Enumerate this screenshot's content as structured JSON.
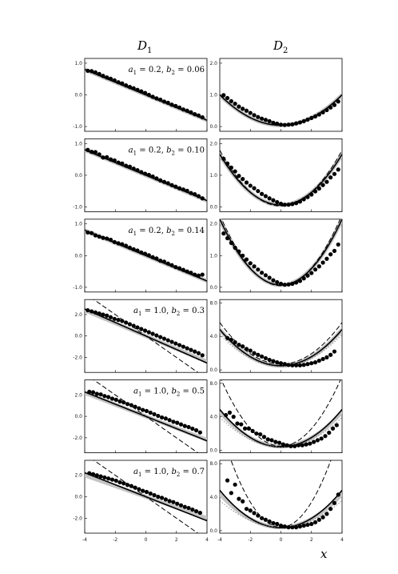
{
  "figure": {
    "column_titles": [
      "D",
      "D"
    ],
    "column_subscripts": [
      "1",
      "2"
    ],
    "x_axis_label": "x",
    "x_ticks": [
      "-4",
      "-2",
      "0",
      "2",
      "4"
    ]
  },
  "chart_data": [
    {
      "type": "line",
      "column": "D1",
      "annotation": {
        "a": "a",
        "a_sub": "1",
        "a_val": "= 0.2,",
        "b": "b",
        "b_sub": "2",
        "b_val": "= 0.06"
      },
      "xlim": [
        -4,
        4
      ],
      "ylim": [
        -1.15,
        1.15
      ],
      "yticks": [
        1.0,
        0.0,
        -1.0
      ],
      "ytick_labels": [
        "1.0",
        "0.0",
        "-1.0"
      ],
      "series": [
        {
          "style": "band-grey",
          "values": {
            "kind": "linear",
            "slope": -0.2,
            "intercept": 0
          }
        },
        {
          "style": "solid",
          "values": {
            "kind": "linear",
            "slope": -0.2,
            "intercept": 0
          }
        },
        {
          "style": "dashed",
          "values": {
            "kind": "linear",
            "slope": -0.2,
            "intercept": 0
          }
        }
      ],
      "points": {
        "x_start": -3.8,
        "x_step": 0.25,
        "y": [
          0.76,
          0.75,
          0.71,
          0.66,
          0.6,
          0.55,
          0.51,
          0.46,
          0.4,
          0.36,
          0.3,
          0.25,
          0.21,
          0.16,
          0.11,
          0.06,
          0.0,
          -0.06,
          -0.11,
          -0.15,
          -0.21,
          -0.25,
          -0.31,
          -0.35,
          -0.4,
          -0.46,
          -0.5,
          -0.55,
          -0.61,
          -0.65,
          -0.71
        ]
      }
    },
    {
      "type": "line",
      "column": "D2",
      "xlim": [
        -4,
        4
      ],
      "ylim": [
        -0.15,
        2.15
      ],
      "yticks": [
        2.0,
        1.0,
        0.0
      ],
      "ytick_labels": [
        "2.0",
        "1.0",
        "0.0"
      ],
      "series": [
        {
          "style": "band-grey",
          "values": {
            "kind": "quadratic",
            "a": 0.06,
            "c": 0.04
          }
        },
        {
          "style": "solid",
          "values": {
            "kind": "quadratic",
            "a": 0.06,
            "c": 0.04
          }
        },
        {
          "style": "dashed",
          "values": {
            "kind": "quadratic",
            "a": 0.06,
            "c": 0.04
          }
        }
      ],
      "points": {
        "x_start": -3.75,
        "x_step": 0.25,
        "y": [
          0.99,
          0.9,
          0.8,
          0.72,
          0.63,
          0.56,
          0.5,
          0.43,
          0.36,
          0.3,
          0.25,
          0.21,
          0.17,
          0.12,
          0.09,
          0.06,
          0.05,
          0.06,
          0.07,
          0.1,
          0.13,
          0.17,
          0.22,
          0.27,
          0.32,
          0.38,
          0.45,
          0.52,
          0.6,
          0.68,
          0.79
        ]
      }
    },
    {
      "type": "line",
      "column": "D1",
      "annotation": {
        "a": "a",
        "a_sub": "1",
        "a_val": "= 0.2,",
        "b": "b",
        "b_sub": "2",
        "b_val": "= 0.10"
      },
      "xlim": [
        -4,
        4
      ],
      "ylim": [
        -1.15,
        1.15
      ],
      "yticks": [
        1.0,
        0.0,
        -1.0
      ],
      "ytick_labels": [
        "1.0",
        "0.0",
        "-1.0"
      ],
      "series": [
        {
          "style": "band-grey",
          "values": {
            "kind": "linear",
            "slope": -0.2,
            "intercept": 0
          }
        },
        {
          "style": "solid",
          "values": {
            "kind": "linear",
            "slope": -0.2,
            "intercept": 0
          }
        },
        {
          "style": "dashed",
          "values": {
            "kind": "linear",
            "slope": -0.2,
            "intercept": 0
          }
        }
      ],
      "points": {
        "x_start": -3.8,
        "x_step": 0.25,
        "y": [
          0.8,
          0.74,
          0.73,
          0.66,
          0.56,
          0.57,
          0.5,
          0.47,
          0.4,
          0.37,
          0.3,
          0.27,
          0.21,
          0.16,
          0.1,
          0.05,
          0.01,
          -0.04,
          -0.1,
          -0.16,
          -0.21,
          -0.25,
          -0.31,
          -0.36,
          -0.41,
          -0.45,
          -0.49,
          -0.56,
          -0.6,
          -0.66,
          -0.73
        ]
      }
    },
    {
      "type": "line",
      "column": "D2",
      "xlim": [
        -4,
        4
      ],
      "ylim": [
        -0.15,
        2.15
      ],
      "yticks": [
        2.0,
        1.0,
        0.0
      ],
      "ytick_labels": [
        "2.0",
        "1.0",
        "0.0"
      ],
      "series": [
        {
          "style": "band-grey",
          "values": {
            "kind": "quadratic",
            "a": 0.1,
            "c": 0.06
          }
        },
        {
          "style": "solid",
          "values": {
            "kind": "quadratic",
            "a": 0.1,
            "c": 0.06
          }
        },
        {
          "style": "dashed",
          "values": {
            "kind": "quadratic",
            "a": 0.11,
            "c": 0.03
          }
        }
      ],
      "points": {
        "x_start": -3.75,
        "x_step": 0.25,
        "y": [
          1.52,
          1.37,
          1.24,
          1.12,
          0.98,
          0.88,
          0.77,
          0.67,
          0.59,
          0.5,
          0.41,
          0.34,
          0.27,
          0.21,
          0.15,
          0.1,
          0.07,
          0.07,
          0.09,
          0.12,
          0.17,
          0.24,
          0.31,
          0.39,
          0.49,
          0.58,
          0.69,
          0.79,
          0.93,
          1.04,
          1.18
        ]
      }
    },
    {
      "type": "line",
      "column": "D1",
      "annotation": {
        "a": "a",
        "a_sub": "1",
        "a_val": "= 0.2,",
        "b": "b",
        "b_sub": "2",
        "b_val": "= 0.14"
      },
      "xlim": [
        -4,
        4
      ],
      "ylim": [
        -1.15,
        1.15
      ],
      "yticks": [
        1.0,
        0.0,
        -1.0
      ],
      "ytick_labels": [
        "1.0",
        "0.0",
        "-1.0"
      ],
      "series": [
        {
          "style": "band-grey",
          "values": {
            "kind": "linear",
            "slope": -0.2,
            "intercept": 0
          }
        },
        {
          "style": "solid",
          "values": {
            "kind": "linear",
            "slope": -0.2,
            "intercept": 0
          }
        },
        {
          "style": "dashed",
          "values": {
            "kind": "linear",
            "slope": -0.2,
            "intercept": 0
          }
        }
      ],
      "points": {
        "x_start": -3.8,
        "x_step": 0.25,
        "y": [
          0.73,
          0.71,
          0.64,
          0.6,
          0.56,
          0.54,
          0.5,
          0.43,
          0.39,
          0.36,
          0.31,
          0.25,
          0.2,
          0.16,
          0.1,
          0.06,
          0.01,
          -0.05,
          -0.09,
          -0.16,
          -0.19,
          -0.25,
          -0.3,
          -0.36,
          -0.4,
          -0.45,
          -0.5,
          -0.54,
          -0.6,
          -0.63,
          -0.6
        ]
      }
    },
    {
      "type": "line",
      "column": "D2",
      "xlim": [
        -4,
        4
      ],
      "ylim": [
        -0.15,
        2.15
      ],
      "yticks": [
        2.0,
        1.0,
        0.0
      ],
      "ytick_labels": [
        "2.0",
        "1.0",
        "0.0"
      ],
      "series": [
        {
          "style": "band-grey",
          "values": {
            "kind": "quadratic",
            "a": 0.13,
            "c": 0.07
          }
        },
        {
          "style": "solid",
          "values": {
            "kind": "quadratic",
            "a": 0.13,
            "c": 0.07
          }
        },
        {
          "style": "dashed",
          "values": {
            "kind": "quadratic",
            "a": 0.14,
            "c": 0.05
          }
        }
      ],
      "points": {
        "x_start": -3.75,
        "x_step": 0.25,
        "y": [
          1.7,
          1.55,
          1.4,
          1.25,
          1.13,
          1.0,
          0.88,
          0.76,
          0.66,
          0.56,
          0.46,
          0.38,
          0.3,
          0.22,
          0.16,
          0.11,
          0.08,
          0.09,
          0.11,
          0.15,
          0.2,
          0.28,
          0.37,
          0.45,
          0.56,
          0.66,
          0.78,
          0.9,
          1.04,
          1.15,
          1.35
        ]
      }
    },
    {
      "type": "line",
      "column": "D1",
      "annotation": {
        "a": "a",
        "a_sub": "1",
        "a_val": "= 1.0,",
        "b": "b",
        "b_sub": "2",
        "b_val": "= 0.3"
      },
      "xlim": [
        -4,
        4
      ],
      "ylim": [
        -3.4,
        3.4
      ],
      "yticks": [
        2.0,
        0.0,
        -2.0
      ],
      "ytick_labels": [
        "2.0",
        "0.0",
        "-2.0"
      ],
      "series": [
        {
          "style": "band-grey",
          "values": {
            "kind": "linear",
            "slope": -0.6,
            "intercept": 0
          }
        },
        {
          "style": "solid",
          "values": {
            "kind": "linear",
            "slope": -0.63,
            "intercept": 0
          }
        },
        {
          "style": "dashed",
          "values": {
            "kind": "linear",
            "slope": -1.0,
            "intercept": 0
          }
        }
      ],
      "points": {
        "x_start": -3.8,
        "x_step": 0.25,
        "y": [
          2.4,
          2.3,
          2.2,
          2.1,
          2.0,
          1.9,
          1.75,
          1.6,
          1.5,
          1.4,
          1.25,
          1.1,
          0.95,
          0.8,
          0.65,
          0.5,
          0.35,
          0.2,
          0.05,
          -0.1,
          -0.25,
          -0.4,
          -0.55,
          -0.7,
          -0.85,
          -1.0,
          -1.15,
          -1.3,
          -1.45,
          -1.6,
          -1.8
        ]
      }
    },
    {
      "type": "line",
      "column": "D2",
      "xlim": [
        -4,
        4
      ],
      "ylim": [
        -0.3,
        8.4
      ],
      "yticks": [
        8.0,
        4.0,
        0.0
      ],
      "ytick_labels": [
        "8.0",
        "4.0",
        "0.0"
      ],
      "series": [
        {
          "style": "band-grey",
          "values": {
            "kind": "quadratic",
            "a": 0.27,
            "c": 0.5
          }
        },
        {
          "style": "solid",
          "values": {
            "kind": "quadratic",
            "a": 0.27,
            "c": 0.5
          }
        },
        {
          "style": "dashed",
          "values": {
            "kind": "quadratic",
            "a": 0.31,
            "c": 0.7
          }
        },
        {
          "style": "dotted",
          "values": {
            "kind": "quadratic",
            "a": 0.24,
            "c": 0.4
          }
        }
      ],
      "points": {
        "x_start": -3.5,
        "x_step": 0.25,
        "y": [
          3.8,
          3.6,
          3.3,
          3.0,
          2.8,
          2.5,
          2.3,
          2.0,
          1.8,
          1.6,
          1.4,
          1.2,
          1.05,
          0.9,
          0.8,
          0.7,
          0.6,
          0.55,
          0.55,
          0.55,
          0.6,
          0.7,
          0.8,
          0.9,
          1.1,
          1.3,
          1.5,
          1.8,
          2.2
        ]
      }
    },
    {
      "type": "line",
      "column": "D1",
      "annotation": {
        "a": "a",
        "a_sub": "1",
        "a_val": "= 1.0,",
        "b": "b",
        "b_sub": "2",
        "b_val": "= 0.5"
      },
      "xlim": [
        -4,
        4
      ],
      "ylim": [
        -3.4,
        3.4
      ],
      "yticks": [
        2.0,
        0.0,
        -2.0
      ],
      "ytick_labels": [
        "2.0",
        "0.0",
        "-2.0"
      ],
      "series": [
        {
          "style": "band-grey",
          "values": {
            "kind": "linear",
            "slope": -0.55,
            "intercept": 0
          }
        },
        {
          "style": "solid",
          "values": {
            "kind": "linear",
            "slope": -0.57,
            "intercept": 0
          }
        },
        {
          "style": "dashed",
          "values": {
            "kind": "linear",
            "slope": -1.0,
            "intercept": 0
          }
        }
      ],
      "points": {
        "x_start": -3.7,
        "x_step": 0.25,
        "y": [
          2.3,
          2.25,
          2.1,
          2.05,
          1.9,
          1.8,
          1.65,
          1.55,
          1.4,
          1.3,
          1.15,
          1.05,
          0.9,
          0.75,
          0.6,
          0.5,
          0.35,
          0.2,
          0.05,
          -0.1,
          -0.2,
          -0.35,
          -0.5,
          -0.6,
          -0.75,
          -0.9,
          -1.0,
          -1.15,
          -1.3,
          -1.5
        ]
      }
    },
    {
      "type": "line",
      "column": "D2",
      "xlim": [
        -4,
        4
      ],
      "ylim": [
        -0.3,
        8.4
      ],
      "yticks": [
        8.0,
        4.0,
        0.0
      ],
      "ytick_labels": [
        "8.0",
        "4.0",
        "0.0"
      ],
      "series": [
        {
          "style": "band-grey",
          "values": {
            "kind": "quadratic",
            "a": 0.26,
            "c": 0.45
          }
        },
        {
          "style": "solid",
          "values": {
            "kind": "quadratic",
            "a": 0.28,
            "c": 0.4
          }
        },
        {
          "style": "dashed",
          "values": {
            "kind": "quadratic",
            "a": 0.52,
            "c": 0.5
          }
        },
        {
          "style": "dotted",
          "values": {
            "kind": "quadratic",
            "a": 0.22,
            "c": 0.4
          }
        }
      ],
      "points": {
        "x_start": -3.6,
        "x_step": 0.25,
        "y": [
          4.2,
          4.5,
          4.0,
          3.2,
          3.1,
          2.6,
          2.6,
          2.3,
          2.0,
          1.9,
          1.6,
          1.3,
          1.2,
          1.0,
          0.9,
          0.7,
          0.6,
          0.5,
          0.5,
          0.6,
          0.6,
          0.7,
          0.8,
          1.0,
          1.2,
          1.4,
          1.7,
          2.1,
          2.6,
          3.0
        ]
      }
    },
    {
      "type": "line",
      "column": "D1",
      "annotation": {
        "a": "a",
        "a_sub": "1",
        "a_val": "= 1.0,",
        "b": "b",
        "b_sub": "2",
        "b_val": "= 0.7"
      },
      "xlim": [
        -4,
        4
      ],
      "ylim": [
        -3.4,
        3.4
      ],
      "yticks": [
        2.0,
        0.0,
        -2.0
      ],
      "ytick_labels": [
        "2.0",
        "0.0",
        "-2.0"
      ],
      "series": [
        {
          "style": "band-grey",
          "values": {
            "kind": "linear",
            "slope": -0.5,
            "intercept": 0
          }
        },
        {
          "style": "solid",
          "values": {
            "kind": "linear",
            "slope": -0.56,
            "intercept": 0
          }
        },
        {
          "style": "dashed",
          "values": {
            "kind": "linear",
            "slope": -1.0,
            "intercept": 0
          }
        }
      ],
      "points": {
        "x_start": -3.7,
        "x_step": 0.25,
        "y": [
          2.2,
          2.1,
          2.0,
          1.9,
          1.8,
          1.7,
          1.6,
          1.5,
          1.35,
          1.25,
          1.1,
          1.0,
          0.85,
          0.7,
          0.55,
          0.45,
          0.3,
          0.15,
          0.0,
          -0.1,
          -0.25,
          -0.4,
          -0.5,
          -0.65,
          -0.8,
          -0.95,
          -1.05,
          -1.2,
          -1.35,
          -1.5
        ]
      }
    },
    {
      "type": "line",
      "column": "D2",
      "xlim": [
        -4,
        4
      ],
      "ylim": [
        -0.3,
        8.4
      ],
      "yticks": [
        8.0,
        4.0,
        0.0
      ],
      "ytick_labels": [
        "8.0",
        "4.0",
        "0.0"
      ],
      "series": [
        {
          "style": "band-grey",
          "values": {
            "kind": "quadratic",
            "a": 0.25,
            "c": 0.4
          }
        },
        {
          "style": "solid",
          "values": {
            "kind": "quadratic",
            "a": 0.28,
            "c": 0.35
          }
        },
        {
          "style": "dashed",
          "values": {
            "kind": "quadratic",
            "a": 0.75,
            "c": 0.4
          }
        },
        {
          "style": "dotted",
          "values": {
            "kind": "quadratic",
            "a": 0.2,
            "c": 0.4
          }
        }
      ],
      "points": {
        "x_start": -3.5,
        "x_step": 0.25,
        "y": [
          6.0,
          4.5,
          5.5,
          3.8,
          3.5,
          2.6,
          2.4,
          2.1,
          1.8,
          1.5,
          1.3,
          1.1,
          0.9,
          0.8,
          0.6,
          0.5,
          0.4,
          0.4,
          0.4,
          0.5,
          0.6,
          0.7,
          0.8,
          1.0,
          1.3,
          1.6,
          2.0,
          2.6,
          3.3,
          4.3
        ]
      }
    }
  ]
}
